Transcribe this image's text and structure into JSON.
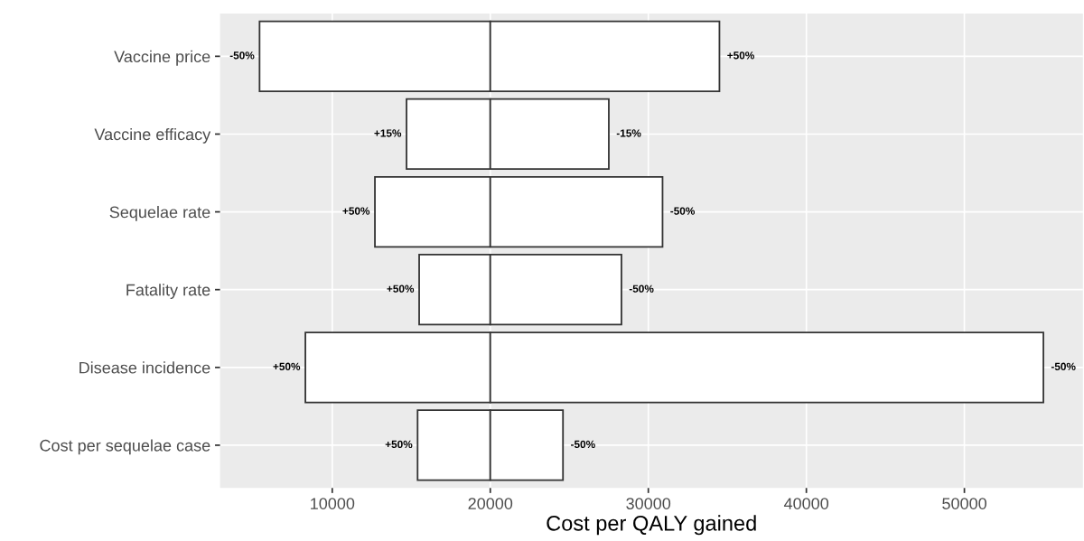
{
  "chart_data": {
    "type": "bar",
    "orientation": "horizontal",
    "xlabel": "Cost per QALY gained",
    "categories": [
      "Vaccine price",
      "Vaccine efficacy",
      "Sequelae rate",
      "Fatality rate",
      "Disease incidence",
      "Cost per sequelae case"
    ],
    "series": [
      {
        "color": "#ffffff",
        "base": [
          5400,
          14700,
          12700,
          15500,
          8300,
          15400
        ],
        "values": [
          14600,
          5300,
          7300,
          4500,
          11700,
          4600
        ]
      },
      {
        "color": "#ffffff",
        "base": [
          20000,
          20000,
          20000,
          20000,
          20000,
          20000
        ],
        "values": [
          14500,
          7500,
          10900,
          8300,
          35000,
          4600
        ]
      }
    ],
    "annotations": [
      {
        "text": "-50%",
        "x": 5400,
        "y": "Vaccine price"
      },
      {
        "text": "+15%",
        "x": 14700,
        "y": "Vaccine efficacy"
      },
      {
        "text": "+50%",
        "x": 12700,
        "y": "Sequelae rate"
      },
      {
        "text": "+50%",
        "x": 15500,
        "y": "Fatality rate"
      },
      {
        "text": "+50%",
        "x": 8300,
        "y": "Disease incidence"
      },
      {
        "text": "+50%",
        "x": 15400,
        "y": "Cost per sequelae case"
      },
      {
        "text": "+50%",
        "x": 34500,
        "y": "Vaccine price"
      },
      {
        "text": "-15%",
        "x": 27500,
        "y": "Vaccine efficacy"
      },
      {
        "text": "-50%",
        "x": 30900,
        "y": "Sequelae rate"
      },
      {
        "text": "-50%",
        "x": 28300,
        "y": "Fatality rate"
      },
      {
        "text": "-50%",
        "x": 55000,
        "y": "Disease incidence"
      },
      {
        "text": "-50%",
        "x": 24600,
        "y": "Cost per sequelae case"
      }
    ],
    "xlim": [
      2900,
      57500
    ],
    "xticks": [
      10000,
      20000,
      30000,
      40000,
      50000
    ],
    "grid": true
  }
}
